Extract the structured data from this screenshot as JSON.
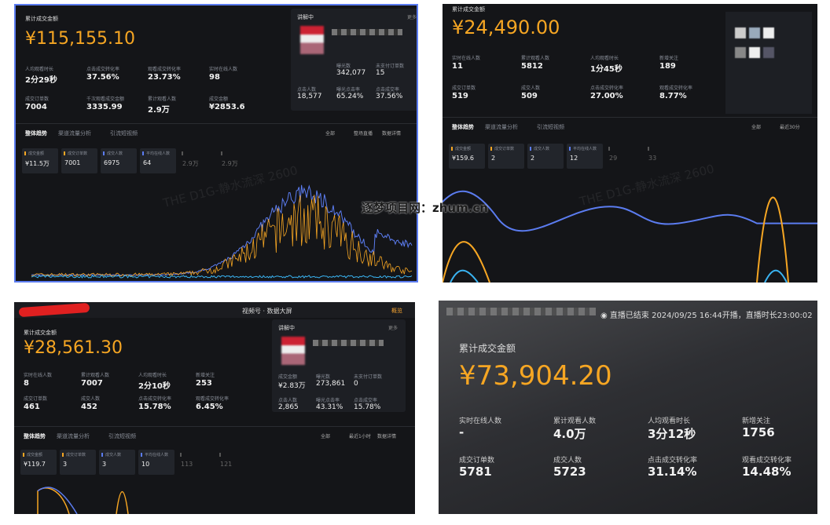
{
  "watermark": "逐梦项目网：zhum.cn",
  "panels": [
    {
      "title": "累计成交金额",
      "amount": "¥115,155.10",
      "metrics": [
        {
          "label": "人均观看时长",
          "value": "2分29秒"
        },
        {
          "label": "点击成交转化率",
          "value": "37.56%"
        },
        {
          "label": "观看成交转化率",
          "value": "23.73%"
        },
        {
          "label": "实时在线人数",
          "value": "98"
        },
        {
          "label": "成交订单数",
          "value": "7004"
        },
        {
          "label": "千次观看成交金额",
          "value": "3335.99"
        },
        {
          "label": "累计观看人数",
          "value": "2.9万"
        },
        {
          "label": "成交金额",
          "value": "¥2853.6"
        }
      ],
      "side": {
        "header": "讲解中",
        "more": "更多",
        "metrics": [
          {
            "label": "曝光数",
            "value": "342,077"
          },
          {
            "label": "未支付订单数",
            "value": "15"
          },
          {
            "label": "点击人数",
            "value": "18,577"
          },
          {
            "label": "曝光点击率",
            "value": "65.24%"
          },
          {
            "label": "点击成交率",
            "value": "37.56%"
          }
        ]
      },
      "tabs": [
        "整体趋势",
        "渠道流量分析",
        "引流短视频"
      ],
      "filters": [
        "全部",
        "整场直播",
        "数据详情"
      ],
      "cards": [
        {
          "label": "成交金额",
          "value": "¥11.5万"
        },
        {
          "label": "成交订单数",
          "value": "7001"
        },
        {
          "label": "成交人数",
          "value": "6975"
        },
        {
          "label": "平均在线人数",
          "value": "64"
        },
        {
          "label": "",
          "value": "2.9万"
        },
        {
          "label": "",
          "value": "2.9万"
        }
      ],
      "watermark": "THE D1G-静水流深 2600"
    },
    {
      "title": "累计成交金额",
      "amount": "¥24,490.00",
      "metrics": [
        {
          "label": "实时在线人数",
          "value": "11"
        },
        {
          "label": "累计观看人数",
          "value": "5812"
        },
        {
          "label": "人均观看时长",
          "value": "1分45秒"
        },
        {
          "label": "新增关注",
          "value": "189"
        },
        {
          "label": "成交订单数",
          "value": "519"
        },
        {
          "label": "成交人数",
          "value": "509"
        },
        {
          "label": "点击成交转化率",
          "value": "27.00%"
        },
        {
          "label": "观看成交转化率",
          "value": "8.77%"
        }
      ],
      "tabs": [
        "整体趋势",
        "渠道流量分析",
        "引流短视频"
      ],
      "filters": [
        "全部",
        "最近30分"
      ],
      "cards": [
        {
          "label": "成交金额",
          "value": "¥159.6"
        },
        {
          "label": "成交订单数",
          "value": "2"
        },
        {
          "label": "成交人数",
          "value": "2"
        },
        {
          "label": "平均在线人数",
          "value": "12"
        },
        {
          "label": "",
          "value": "29"
        },
        {
          "label": "",
          "value": "33"
        }
      ],
      "watermark": "THE D1G-静水流深 2600"
    },
    {
      "header": "视频号 · 数据大屏",
      "tab": "概览",
      "title": "累计成交金额",
      "amount": "¥28,561.30",
      "metrics": [
        {
          "label": "实时在线人数",
          "value": "8"
        },
        {
          "label": "累计观看人数",
          "value": "7007"
        },
        {
          "label": "人均观看时长",
          "value": "2分10秒"
        },
        {
          "label": "新增关注",
          "value": "253"
        },
        {
          "label": "成交订单数",
          "value": "461"
        },
        {
          "label": "成交人数",
          "value": "452"
        },
        {
          "label": "点击成交转化率",
          "value": "15.78%"
        },
        {
          "label": "观看成交转化率",
          "value": "6.45%"
        }
      ],
      "side": {
        "header": "讲解中",
        "more": "更多",
        "metrics": [
          {
            "label": "成交金额",
            "value": "¥2.83万"
          },
          {
            "label": "曝光数",
            "value": "273,861"
          },
          {
            "label": "未支付订单数",
            "value": "0"
          },
          {
            "label": "点击人数",
            "value": "2,865"
          },
          {
            "label": "曝光点击率",
            "value": "43.31%"
          },
          {
            "label": "点击成交率",
            "value": "15.78%"
          }
        ]
      },
      "tabs": [
        "整体趋势",
        "渠道流量分析",
        "引流短视频"
      ],
      "filters": [
        "全部",
        "最近1小时",
        "数据详情"
      ],
      "cards": [
        {
          "label": "成交金额",
          "value": "¥119.7"
        },
        {
          "label": "成交订单数",
          "value": "3"
        },
        {
          "label": "成交人数",
          "value": "3"
        },
        {
          "label": "平均在线人数",
          "value": "10"
        },
        {
          "label": "",
          "value": "113"
        },
        {
          "label": "",
          "value": "121"
        }
      ]
    },
    {
      "header": "◉ 直播已结束 2024/09/25 16:44开播，直播时长23:00:02",
      "title": "累计成交金额",
      "amount": "¥73,904.20",
      "metrics": [
        {
          "label": "实时在线人数",
          "value": "-"
        },
        {
          "label": "累计观看人数",
          "value": "4.0万"
        },
        {
          "label": "人均观看时长",
          "value": "3分12秒"
        },
        {
          "label": "新增关注",
          "value": "1756"
        },
        {
          "label": "成交订单数",
          "value": "5781"
        },
        {
          "label": "成交人数",
          "value": "5723"
        },
        {
          "label": "点击成交转化率",
          "value": "31.14%"
        },
        {
          "label": "观看成交转化率",
          "value": "14.48%"
        }
      ]
    }
  ]
}
